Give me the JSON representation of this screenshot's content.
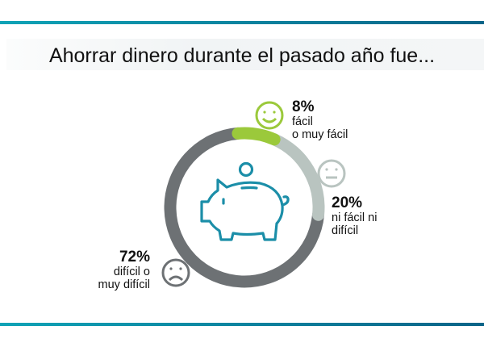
{
  "title": "Ahorrar dinero durante el pasado año fue...",
  "colors": {
    "accent_bar": "#0a8aa5",
    "pig": "#1b8ea8"
  },
  "chart_data": {
    "type": "pie",
    "style": "donut",
    "title": "Ahorrar dinero durante el pasado año fue...",
    "slices": [
      {
        "pct_label": "8%",
        "value": 8,
        "line1": "fácil",
        "line2": "o muy fácil",
        "color": "#9bc93b",
        "icon": "smiley-happy-icon"
      },
      {
        "pct_label": "20%",
        "value": 20,
        "line1": "ni fácil ni",
        "line2": "difícil",
        "color": "#b9c4c0",
        "icon": "smiley-neutral-icon"
      },
      {
        "pct_label": "72%",
        "value": 72,
        "line1": "difícil o",
        "line2": "muy difícil",
        "color": "#6d7174",
        "icon": "smiley-sad-icon"
      }
    ],
    "center_icon": "piggy-bank-icon"
  }
}
